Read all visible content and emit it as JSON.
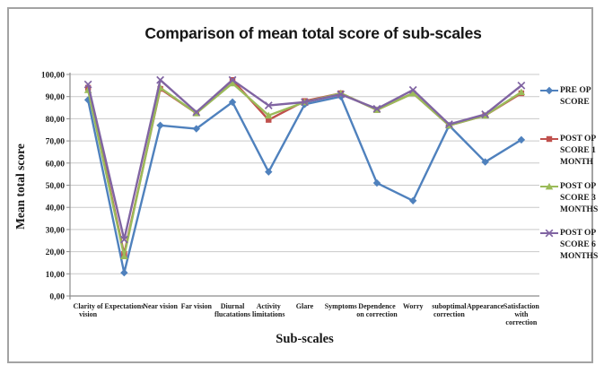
{
  "chart": {
    "title": "Comparison of mean total score of sub-scales",
    "y_axis_title": "Mean total score",
    "x_axis_title": "Sub-scales"
  },
  "chart_data": {
    "type": "line",
    "title": "Comparison of mean total score of sub-scales",
    "xlabel": "Sub-scales",
    "ylabel": "Mean total score",
    "ymin": 0,
    "ymax": 100,
    "ystep": 10,
    "grid": true,
    "legend_position": "right",
    "grid_color": "#c9c9c9",
    "axis_color": "#8c8c8c",
    "y_tick_labels": [
      "0,00",
      "10,00",
      "20,00",
      "30,00",
      "40,00",
      "50,00",
      "60,00",
      "70,00",
      "80,00",
      "90,00",
      "100,00"
    ],
    "categories": [
      "Clarity of vision",
      "Expectations",
      "Near vision",
      "Far vision",
      "Diurnal flucatations",
      "Activity limitations",
      "Glare",
      "Symptoms",
      "Dependence on correction",
      "Worry",
      "suboptimal correction",
      "Appearance",
      "Satisfaction with correction"
    ],
    "category_label_lines": [
      [
        "Clarity of",
        "vision"
      ],
      [
        "Expectations"
      ],
      [
        "Near vision"
      ],
      [
        "Far vision"
      ],
      [
        "Diurnal",
        "flucatations"
      ],
      [
        "Activity",
        "limitations"
      ],
      [
        "Glare"
      ],
      [
        "Symptoms"
      ],
      [
        "Dependence",
        "on correction"
      ],
      [
        "Worry"
      ],
      [
        "suboptimal",
        "correction"
      ],
      [
        "Appearance"
      ],
      [
        "Satisfaction",
        "with",
        "correction"
      ]
    ],
    "series": [
      {
        "name": "PRE OP SCORE",
        "color": "#4f81bd",
        "marker": "diamond",
        "values": [
          88.5,
          10.5,
          77,
          75.5,
          87.5,
          56,
          86.5,
          90,
          51,
          43,
          77,
          60.5,
          70.5
        ]
      },
      {
        "name": "POST OP SCORE 1 MONTH",
        "color": "#c0504d",
        "marker": "square",
        "values": [
          94,
          19,
          93.5,
          82.5,
          97.5,
          79.5,
          88,
          91.5,
          84,
          91.5,
          77,
          81.5,
          91.5
        ]
      },
      {
        "name": "POST OP SCORE 3 MONTHS",
        "color": "#9bbb59",
        "marker": "triangle",
        "values": [
          93,
          18,
          94,
          82.5,
          96,
          81.5,
          87.5,
          91.5,
          84,
          91.5,
          77,
          81.5,
          92
        ]
      },
      {
        "name": "POST OP SCORE 6 MONTHS",
        "color": "#8064a2",
        "marker": "x",
        "values": [
          95.5,
          25.5,
          97.5,
          83,
          97.5,
          86,
          87.5,
          91,
          84.5,
          93,
          77.5,
          82,
          95
        ]
      }
    ],
    "legend_tops": [
      95,
      149,
      202,
      254
    ]
  }
}
